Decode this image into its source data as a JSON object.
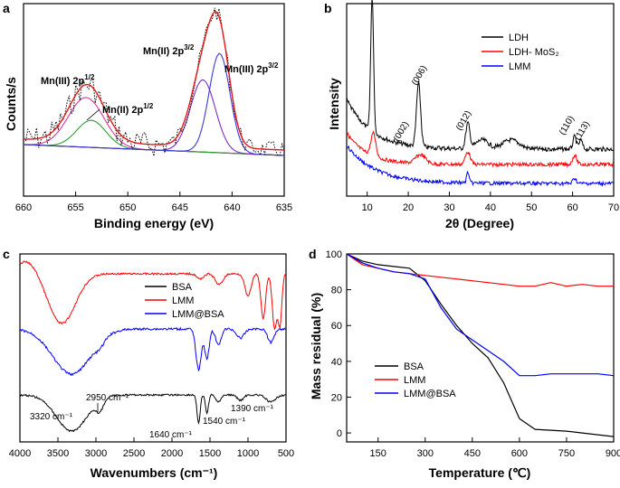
{
  "chart_data": [
    {
      "panel": "a",
      "type": "line",
      "xlabel": "Binding energy (eV)",
      "ylabel": "Counts/s",
      "xlim": [
        660,
        635
      ],
      "xticks": [
        "660",
        "655",
        "650",
        "645",
        "640",
        "635"
      ],
      "annotations": [
        {
          "label": "Mn(III) 2p",
          "sup": "1/2"
        },
        {
          "label": "Mn(II) 2p",
          "sup": "1/2"
        },
        {
          "label": "Mn(II) 2p",
          "sup": "3/2"
        },
        {
          "label": "Mn(III) 2p",
          "sup": "3/2"
        }
      ],
      "series": [
        {
          "name": "raw",
          "color": "#000000",
          "style": "dotted"
        },
        {
          "name": "fit",
          "color": "#e31a1c"
        },
        {
          "name": "Mn(III) 2p1/2",
          "color": "#d6389f"
        },
        {
          "name": "Mn(II) 2p1/2",
          "color": "#2ca02c"
        },
        {
          "name": "Mn(II) 2p3/2",
          "color": "#7b2fbe"
        },
        {
          "name": "Mn(III) 2p3/2",
          "color": "#3b3bd6"
        },
        {
          "name": "background",
          "color": "#555555"
        }
      ],
      "peaks_eV": [
        654.0,
        653.5,
        642.8,
        641.2
      ]
    },
    {
      "panel": "b",
      "type": "line",
      "xlabel": "2θ (Degree)",
      "ylabel": "Intensity",
      "xlim": [
        5,
        70
      ],
      "xticks": [
        "10",
        "20",
        "30",
        "40",
        "50",
        "60",
        "70"
      ],
      "legend": [
        "LDH",
        "LDH- MoS₂",
        "LMM"
      ],
      "colors": [
        "#000000",
        "#ff0000",
        "#0000ff"
      ],
      "peak_labels": [
        "(002)",
        "(006)",
        "(012)",
        "(110)",
        "(113)"
      ],
      "peak_positions": [
        11.5,
        22.5,
        34.5,
        60.5,
        62
      ]
    },
    {
      "panel": "c",
      "type": "line",
      "xlabel": "Wavenumbers (cm⁻¹)",
      "xlim": [
        4000,
        500
      ],
      "xticks": [
        "4000",
        "3500",
        "3000",
        "2500",
        "2000",
        "1500",
        "1000",
        "500"
      ],
      "legend": [
        "BSA",
        "LMM",
        "LMM@BSA"
      ],
      "colors": [
        "#000000",
        "#ff0000",
        "#0000ff"
      ],
      "bands": [
        "3320 cm⁻¹",
        "2950 cm⁻¹",
        "1640 cm⁻¹",
        "1540 cm⁻¹",
        "1390 cm⁻¹"
      ]
    },
    {
      "panel": "d",
      "type": "line",
      "xlabel": "Temperature (℃)",
      "ylabel": "Mass residual (%)",
      "xlim": [
        50,
        900
      ],
      "ylim": [
        -5,
        100
      ],
      "xticks": [
        "150",
        "300",
        "450",
        "600",
        "750",
        "900"
      ],
      "yticks": [
        "0",
        "20",
        "40",
        "60",
        "80",
        "100"
      ],
      "legend": [
        "BSA",
        "LMM",
        "LMM@BSA"
      ],
      "colors": [
        "#000000",
        "#ff0000",
        "#0000ff"
      ],
      "series": [
        {
          "name": "BSA",
          "x": [
            50,
            100,
            150,
            200,
            250,
            300,
            350,
            400,
            450,
            500,
            550,
            600,
            650,
            700,
            750,
            800,
            850,
            900
          ],
          "y": [
            100,
            96,
            94,
            93,
            92,
            85,
            72,
            60,
            50,
            42,
            28,
            8,
            2,
            1.5,
            1,
            0,
            -1,
            -2
          ]
        },
        {
          "name": "LMM",
          "x": [
            50,
            100,
            150,
            200,
            250,
            300,
            350,
            400,
            450,
            500,
            550,
            600,
            650,
            700,
            750,
            800,
            850,
            900
          ],
          "y": [
            100,
            94,
            92,
            90,
            89,
            88,
            87,
            86,
            85,
            84,
            83,
            82,
            82,
            84,
            82,
            83,
            82,
            82
          ]
        },
        {
          "name": "LMM@BSA",
          "x": [
            50,
            100,
            150,
            200,
            250,
            300,
            350,
            400,
            450,
            500,
            550,
            600,
            650,
            700,
            750,
            800,
            850,
            900
          ],
          "y": [
            100,
            95,
            92,
            90,
            89,
            86,
            70,
            58,
            52,
            46,
            40,
            32,
            32,
            33,
            33,
            33,
            33,
            32
          ]
        }
      ]
    }
  ]
}
